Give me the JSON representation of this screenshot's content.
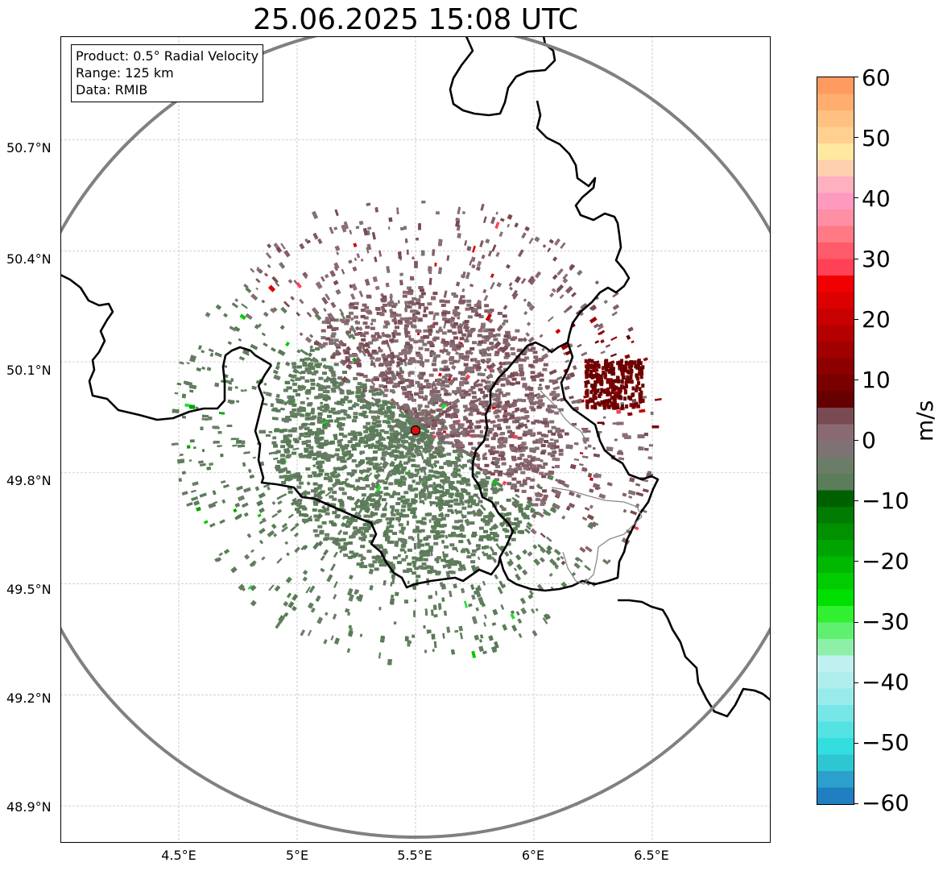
{
  "title": "25.06.2025 15:08 UTC",
  "info": {
    "product": "Product: 0.5° Radial Velocity",
    "range": "Range: 125 km",
    "source": "Data: RMIB"
  },
  "axes": {
    "lat_labels": [
      "50.7°N",
      "50.4°N",
      "50.1°N",
      "49.8°N",
      "49.5°N",
      "49.2°N",
      "48.9°N"
    ],
    "lon_labels": [
      "4.5°E",
      "5°E",
      "5.5°E",
      "6°E",
      "6.5°E"
    ]
  },
  "colorbar": {
    "unit": "m/s",
    "tick_labels": [
      "60",
      "50",
      "40",
      "30",
      "20",
      "10",
      "0",
      "−10",
      "−20",
      "−30",
      "−40",
      "−50",
      "−60"
    ],
    "min": -60,
    "max": 60,
    "colors": [
      "#1f7fc0",
      "#2ba0cc",
      "#2fc6d4",
      "#33dede",
      "#55e2e2",
      "#77e6e6",
      "#99ebeb",
      "#b0eeee",
      "#c0f0f0",
      "#8ef0a8",
      "#60f070",
      "#30f030",
      "#00e000",
      "#00cc00",
      "#00b800",
      "#00a400",
      "#009000",
      "#007c00",
      "#006000",
      "#5c7d5a",
      "#6b7d68",
      "#7f7272",
      "#8a6a72",
      "#7a4a52",
      "#660000",
      "#7a0000",
      "#8c0000",
      "#a00000",
      "#b40000",
      "#c80000",
      "#dd0000",
      "#f00000",
      "#ff4055",
      "#ff5b6a",
      "#ff7a85",
      "#ff8fa5",
      "#ff99c0",
      "#ffb0c0",
      "#ffd0b0",
      "#ffe8a0",
      "#ffd090",
      "#ffc080",
      "#ffae70",
      "#ff9a60"
    ]
  },
  "radar": {
    "site_lon": 5.5,
    "site_lat": 49.915,
    "range_km": 125
  },
  "map_view": {
    "lon_min": 4.0,
    "lon_max": 7.0,
    "lat_min": 48.8,
    "lat_max": 50.98
  }
}
